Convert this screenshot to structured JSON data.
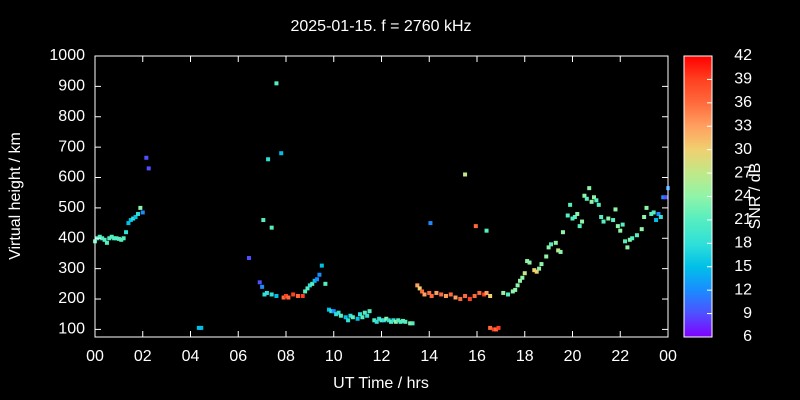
{
  "chart_data": {
    "type": "scatter",
    "title": "2025-01-15. f = 2760 kHz",
    "xlabel": "UT Time / hrs",
    "ylabel": "Virtual height / km",
    "colorbar_label": "SNR / dB",
    "x": [
      0.0,
      0.1,
      0.2,
      0.3,
      0.4,
      0.5,
      0.6,
      0.7,
      0.8,
      0.9,
      1.0,
      1.1,
      1.2,
      1.3,
      1.4,
      1.5,
      1.6,
      1.7,
      1.8,
      1.9,
      2.0,
      2.15,
      2.25,
      4.35,
      4.45,
      6.45,
      6.9,
      7.0,
      7.1,
      7.05,
      7.25,
      7.4,
      7.6,
      7.8,
      7.2,
      7.4,
      7.6,
      7.9,
      8.0,
      8.1,
      8.3,
      8.5,
      8.7,
      8.8,
      8.9,
      9.0,
      9.1,
      9.2,
      9.3,
      9.4,
      9.5,
      9.65,
      9.8,
      9.9,
      10.0,
      10.1,
      10.2,
      10.3,
      10.5,
      10.6,
      10.7,
      10.8,
      11.0,
      11.1,
      11.2,
      11.3,
      11.4,
      11.5,
      11.7,
      11.8,
      11.9,
      12.0,
      12.1,
      12.2,
      12.3,
      12.4,
      12.5,
      12.6,
      12.7,
      12.8,
      12.9,
      13.0,
      13.2,
      13.3,
      13.5,
      13.6,
      13.7,
      13.8,
      14.0,
      14.1,
      14.3,
      14.5,
      14.7,
      14.9,
      15.1,
      15.3,
      15.5,
      15.7,
      15.9,
      16.1,
      16.3,
      16.4,
      16.55,
      14.05,
      15.5,
      15.95,
      16.4,
      16.55,
      16.7,
      16.8,
      16.9,
      17.1,
      17.3,
      17.5,
      17.6,
      17.7,
      17.8,
      17.9,
      18.0,
      18.1,
      18.2,
      18.4,
      18.5,
      18.6,
      18.7,
      18.9,
      19.0,
      19.1,
      19.3,
      19.4,
      19.5,
      19.6,
      19.8,
      19.9,
      20.0,
      20.1,
      20.2,
      20.3,
      20.4,
      20.5,
      20.6,
      20.7,
      20.8,
      20.9,
      21.0,
      21.1,
      21.2,
      21.3,
      21.5,
      21.7,
      21.8,
      21.9,
      22.0,
      22.1,
      22.2,
      22.3,
      22.4,
      22.5,
      22.7,
      22.9,
      23.0,
      23.1,
      23.3,
      23.4,
      23.5,
      23.6,
      23.7,
      23.8,
      23.9,
      24.0
    ],
    "values": [
      390,
      400,
      405,
      400,
      395,
      385,
      400,
      405,
      400,
      400,
      398,
      395,
      400,
      420,
      450,
      460,
      465,
      470,
      480,
      500,
      485,
      665,
      630,
      105,
      105,
      335,
      255,
      240,
      215,
      460,
      660,
      435,
      910,
      680,
      220,
      215,
      210,
      205,
      210,
      205,
      215,
      210,
      210,
      225,
      235,
      245,
      250,
      260,
      265,
      280,
      310,
      250,
      165,
      160,
      160,
      150,
      155,
      145,
      140,
      130,
      145,
      140,
      135,
      150,
      140,
      155,
      145,
      160,
      130,
      125,
      135,
      130,
      130,
      135,
      130,
      125,
      130,
      125,
      130,
      125,
      128,
      125,
      120,
      120,
      245,
      235,
      225,
      215,
      220,
      210,
      220,
      215,
      210,
      215,
      205,
      200,
      210,
      200,
      210,
      220,
      215,
      220,
      210,
      450,
      610,
      440,
      425,
      105,
      100,
      100,
      105,
      220,
      215,
      225,
      230,
      245,
      260,
      270,
      285,
      325,
      320,
      295,
      290,
      300,
      315,
      340,
      370,
      380,
      385,
      360,
      355,
      420,
      475,
      510,
      465,
      470,
      480,
      440,
      455,
      540,
      530,
      565,
      520,
      535,
      525,
      510,
      470,
      455,
      465,
      460,
      495,
      440,
      425,
      445,
      390,
      370,
      395,
      400,
      410,
      430,
      470,
      500,
      480,
      485,
      460,
      480,
      470,
      535,
      535,
      565
    ],
    "snr": [
      21,
      21,
      21,
      21,
      21,
      21,
      21,
      21,
      21,
      21,
      21,
      21,
      21,
      18,
      15,
      15,
      18,
      15,
      18,
      24,
      12,
      9,
      9,
      15,
      15,
      9,
      9,
      12,
      18,
      21,
      18,
      21,
      21,
      15,
      18,
      18,
      15,
      36,
      39,
      36,
      39,
      36,
      39,
      21,
      21,
      18,
      21,
      15,
      12,
      12,
      15,
      21,
      15,
      18,
      12,
      18,
      18,
      21,
      15,
      18,
      18,
      21,
      15,
      18,
      21,
      21,
      18,
      21,
      21,
      18,
      18,
      21,
      18,
      24,
      18,
      21,
      18,
      24,
      21,
      21,
      21,
      21,
      24,
      21,
      33,
      30,
      36,
      33,
      36,
      36,
      33,
      36,
      33,
      36,
      33,
      36,
      36,
      39,
      36,
      36,
      39,
      33,
      30,
      12,
      27,
      36,
      21,
      36,
      39,
      36,
      39,
      24,
      21,
      24,
      24,
      24,
      24,
      24,
      27,
      24,
      24,
      30,
      30,
      24,
      24,
      24,
      24,
      21,
      24,
      27,
      24,
      24,
      21,
      21,
      21,
      21,
      24,
      21,
      24,
      24,
      21,
      24,
      24,
      24,
      21,
      21,
      21,
      21,
      24,
      21,
      24,
      24,
      24,
      21,
      21,
      24,
      24,
      21,
      21,
      24,
      24,
      24,
      21,
      21,
      15,
      12,
      18,
      12,
      9,
      12
    ],
    "xlim": [
      0,
      24
    ],
    "xticks": [
      {
        "value": 0,
        "label": "00"
      },
      {
        "value": 2,
        "label": "02"
      },
      {
        "value": 4,
        "label": "04"
      },
      {
        "value": 6,
        "label": "06"
      },
      {
        "value": 8,
        "label": "08"
      },
      10,
      12,
      14,
      16,
      18,
      20,
      22,
      {
        "value": 24,
        "label": "00"
      }
    ],
    "ylim": [
      75,
      1000
    ],
    "yticks": [
      100,
      200,
      300,
      400,
      500,
      600,
      700,
      800,
      900,
      1000
    ],
    "clim": [
      6,
      42
    ],
    "cticks": [
      6,
      9,
      12,
      15,
      18,
      21,
      24,
      27,
      30,
      33,
      36,
      39,
      42
    ],
    "colormap": [
      "#8000ff",
      "#4f50ff",
      "#1a8cff",
      "#00c0e8",
      "#30e0d8",
      "#55eec0",
      "#90f4a8",
      "#c0e888",
      "#f0d070",
      "#ffa060",
      "#ff6a3c",
      "#ff4020",
      "#ff0000"
    ]
  }
}
